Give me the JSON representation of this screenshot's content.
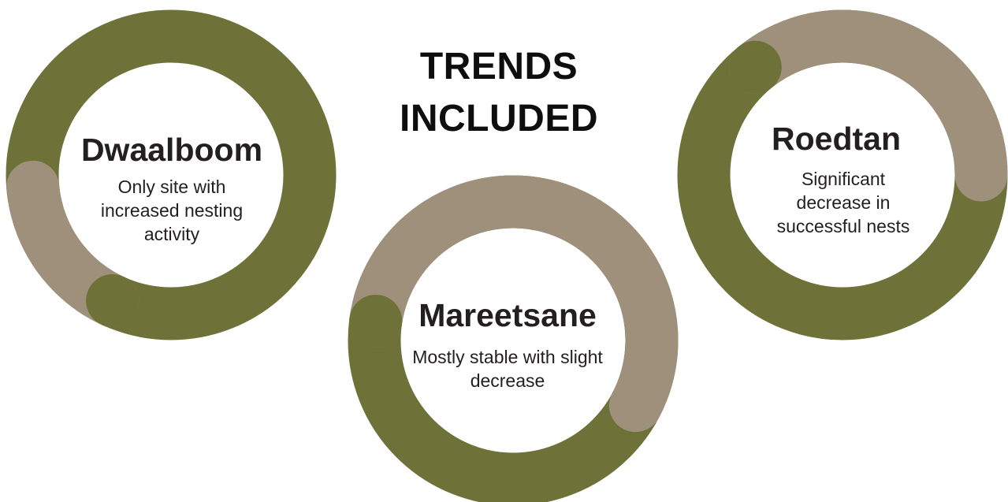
{
  "title": {
    "line1": "TRENDS",
    "line2": "INCLUDED"
  },
  "colors": {
    "olive": "#6e7238",
    "taupe": "#9e907b",
    "background": "#ffffff",
    "text": "#231f20"
  },
  "sites": [
    {
      "name": "Dwaalboom",
      "description": "Only site with increased nesting activity"
    },
    {
      "name": "Mareetsane",
      "description": "Mostly stable with slight decrease"
    },
    {
      "name": "Roedtan",
      "description": "Significant decrease in successful nests"
    }
  ]
}
